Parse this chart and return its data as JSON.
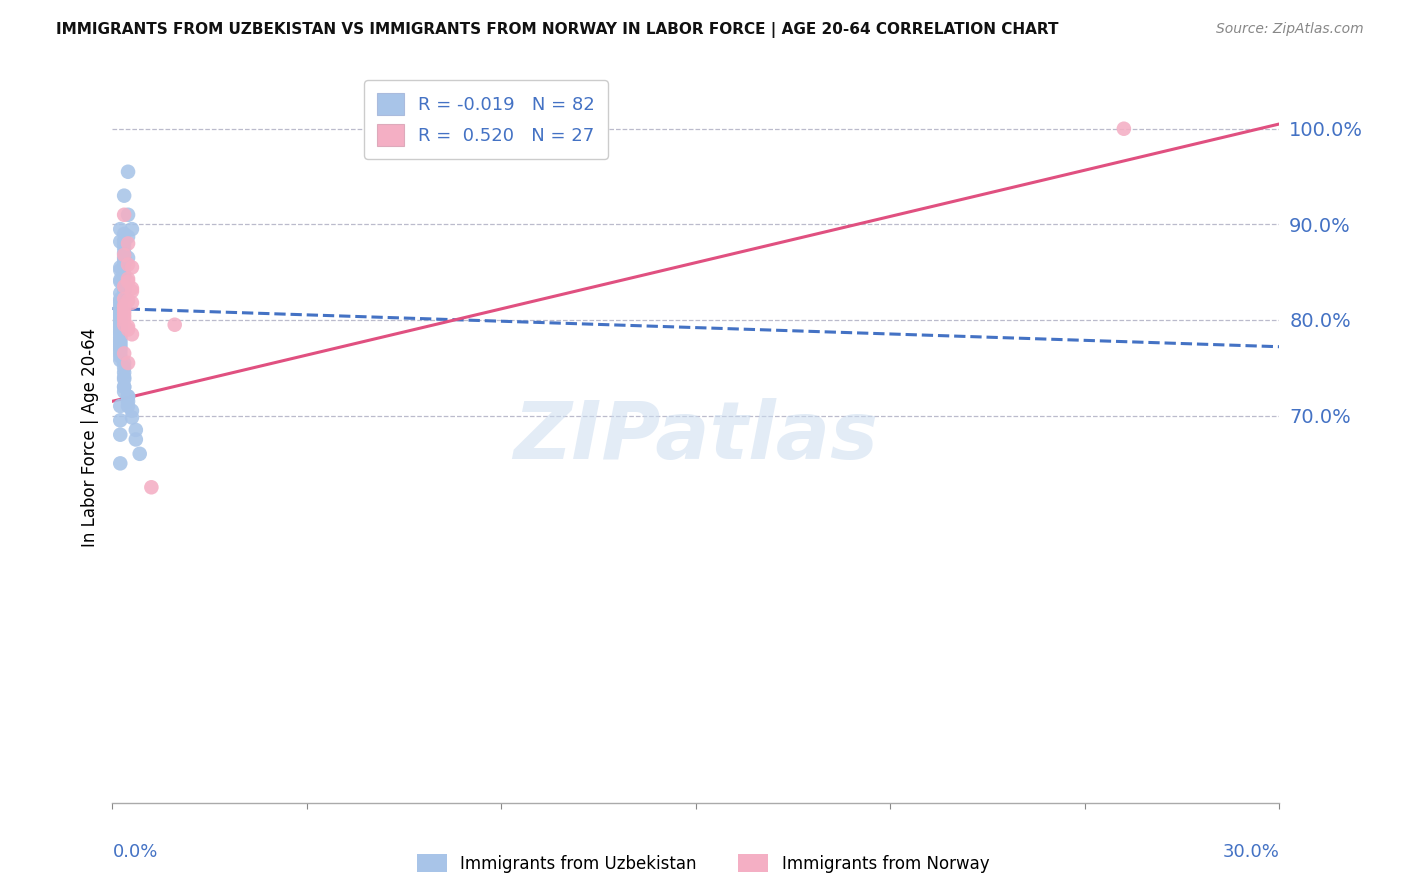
{
  "title": "IMMIGRANTS FROM UZBEKISTAN VS IMMIGRANTS FROM NORWAY IN LABOR FORCE | AGE 20-64 CORRELATION CHART",
  "source": "Source: ZipAtlas.com",
  "ylabel": "In Labor Force | Age 20-64",
  "color_uzbekistan": "#a8c4e8",
  "color_norway": "#f4afc4",
  "color_uzbekistan_line": "#4472c4",
  "color_norway_line": "#e05080",
  "color_axis_labels": "#4472c4",
  "color_grid": "#bbbbcc",
  "watermark_text": "ZIPatlas",
  "xlim": [
    0.0,
    0.3
  ],
  "ylim": [
    0.295,
    1.06
  ],
  "ytick_vals": [
    0.7,
    0.8,
    0.9,
    1.0
  ],
  "ytick_labels": [
    "70.0%",
    "80.0%",
    "90.0%",
    "100.0%"
  ],
  "uzb_trend": [
    0.0,
    0.812,
    0.3,
    0.772
  ],
  "nor_trend": [
    0.0,
    0.715,
    0.3,
    1.005
  ],
  "uzbekistan_x": [
    0.004,
    0.003,
    0.004,
    0.005,
    0.002,
    0.003,
    0.004,
    0.003,
    0.002,
    0.003,
    0.003,
    0.003,
    0.003,
    0.004,
    0.003,
    0.003,
    0.002,
    0.002,
    0.003,
    0.003,
    0.002,
    0.002,
    0.003,
    0.003,
    0.003,
    0.003,
    0.002,
    0.003,
    0.002,
    0.002,
    0.002,
    0.002,
    0.002,
    0.002,
    0.002,
    0.002,
    0.002,
    0.002,
    0.002,
    0.002,
    0.002,
    0.002,
    0.002,
    0.002,
    0.002,
    0.002,
    0.002,
    0.002,
    0.002,
    0.002,
    0.002,
    0.002,
    0.002,
    0.002,
    0.002,
    0.002,
    0.002,
    0.002,
    0.002,
    0.002,
    0.002,
    0.003,
    0.003,
    0.003,
    0.003,
    0.003,
    0.003,
    0.003,
    0.004,
    0.004,
    0.004,
    0.005,
    0.005,
    0.006,
    0.006,
    0.007,
    0.002,
    0.003,
    0.004,
    0.002,
    0.002,
    0.002
  ],
  "uzbekistan_y": [
    0.955,
    0.93,
    0.91,
    0.895,
    0.895,
    0.89,
    0.887,
    0.883,
    0.882,
    0.88,
    0.875,
    0.87,
    0.865,
    0.865,
    0.862,
    0.858,
    0.855,
    0.852,
    0.848,
    0.845,
    0.842,
    0.84,
    0.838,
    0.836,
    0.832,
    0.83,
    0.828,
    0.825,
    0.822,
    0.82,
    0.818,
    0.815,
    0.812,
    0.81,
    0.808,
    0.806,
    0.805,
    0.803,
    0.8,
    0.8,
    0.8,
    0.798,
    0.796,
    0.795,
    0.793,
    0.792,
    0.79,
    0.788,
    0.787,
    0.785,
    0.782,
    0.78,
    0.778,
    0.776,
    0.774,
    0.772,
    0.77,
    0.768,
    0.765,
    0.762,
    0.758,
    0.755,
    0.75,
    0.745,
    0.74,
    0.738,
    0.73,
    0.725,
    0.72,
    0.715,
    0.71,
    0.705,
    0.698,
    0.685,
    0.675,
    0.66,
    0.65,
    0.73,
    0.72,
    0.71,
    0.695,
    0.68
  ],
  "norway_x": [
    0.003,
    0.004,
    0.003,
    0.004,
    0.005,
    0.004,
    0.004,
    0.003,
    0.005,
    0.005,
    0.003,
    0.004,
    0.005,
    0.003,
    0.003,
    0.003,
    0.003,
    0.003,
    0.003,
    0.004,
    0.004,
    0.005,
    0.003,
    0.004,
    0.016,
    0.26,
    0.01
  ],
  "norway_y": [
    0.91,
    0.88,
    0.868,
    0.858,
    0.855,
    0.843,
    0.84,
    0.835,
    0.833,
    0.83,
    0.822,
    0.82,
    0.818,
    0.815,
    0.812,
    0.808,
    0.804,
    0.8,
    0.795,
    0.793,
    0.79,
    0.785,
    0.765,
    0.755,
    0.795,
    1.0,
    0.625
  ]
}
